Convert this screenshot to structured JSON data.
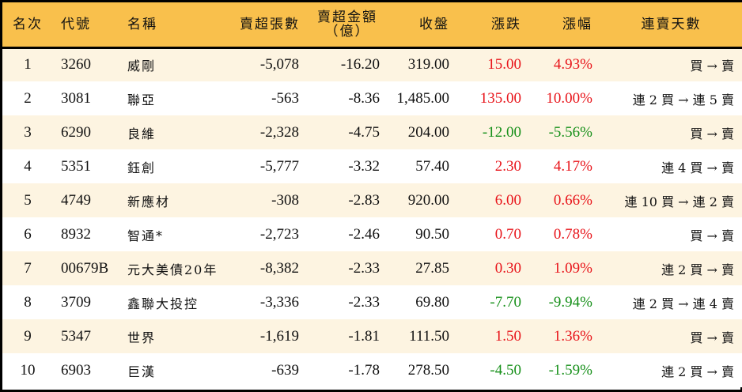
{
  "colors": {
    "header_bg": "#F9C04C",
    "row_odd_bg": "#FDF4E1",
    "row_even_bg": "#FFFFFF",
    "up": "#E8141A",
    "down": "#17901A",
    "border": "#000000"
  },
  "table": {
    "headers": {
      "rank": "名次",
      "code": "代號",
      "name": "名稱",
      "net_sell_lots": "賣超張數",
      "net_sell_amount_line1": "賣超金額",
      "net_sell_amount_line2": "（億）",
      "close": "收盤",
      "change": "漲跌",
      "change_pct": "漲幅",
      "streak": "連賣天數"
    },
    "rows": [
      {
        "rank": "1",
        "code": "3260",
        "name": "威剛",
        "lots": "-5,078",
        "amount": "-16.20",
        "close": "319.00",
        "change": "15.00",
        "pct": "4.93%",
        "dir": "up",
        "streak": "買 → 賣"
      },
      {
        "rank": "2",
        "code": "3081",
        "name": "聯亞",
        "lots": "-563",
        "amount": "-8.36",
        "close": "1,485.00",
        "change": "135.00",
        "pct": "10.00%",
        "dir": "up",
        "streak": "連 2 買 → 連 5 賣"
      },
      {
        "rank": "3",
        "code": "6290",
        "name": "良維",
        "lots": "-2,328",
        "amount": "-4.75",
        "close": "204.00",
        "change": "-12.00",
        "pct": "-5.56%",
        "dir": "down",
        "streak": "買 → 賣"
      },
      {
        "rank": "4",
        "code": "5351",
        "name": "鈺創",
        "lots": "-5,777",
        "amount": "-3.32",
        "close": "57.40",
        "change": "2.30",
        "pct": "4.17%",
        "dir": "up",
        "streak": "連 4 買 → 賣"
      },
      {
        "rank": "5",
        "code": "4749",
        "name": "新應材",
        "lots": "-308",
        "amount": "-2.83",
        "close": "920.00",
        "change": "6.00",
        "pct": "0.66%",
        "dir": "up",
        "streak": "連 10 買 → 連 2 賣"
      },
      {
        "rank": "6",
        "code": "8932",
        "name": "智通*",
        "lots": "-2,723",
        "amount": "-2.46",
        "close": "90.50",
        "change": "0.70",
        "pct": "0.78%",
        "dir": "up",
        "streak": "買 → 賣"
      },
      {
        "rank": "7",
        "code": "00679B",
        "name": "元大美債20年",
        "lots": "-8,382",
        "amount": "-2.33",
        "close": "27.85",
        "change": "0.30",
        "pct": "1.09%",
        "dir": "up",
        "streak": "連 2 買 → 賣"
      },
      {
        "rank": "8",
        "code": "3709",
        "name": "鑫聯大投控",
        "lots": "-3,336",
        "amount": "-2.33",
        "close": "69.80",
        "change": "-7.70",
        "pct": "-9.94%",
        "dir": "down",
        "streak": "連 2 買 → 連 4 賣"
      },
      {
        "rank": "9",
        "code": "5347",
        "name": "世界",
        "lots": "-1,619",
        "amount": "-1.81",
        "close": "111.50",
        "change": "1.50",
        "pct": "1.36%",
        "dir": "up",
        "streak": "買 → 賣"
      },
      {
        "rank": "10",
        "code": "6903",
        "name": "巨漢",
        "lots": "-639",
        "amount": "-1.78",
        "close": "278.50",
        "change": "-4.50",
        "pct": "-1.59%",
        "dir": "down",
        "streak": "連 2 買 → 賣"
      }
    ]
  }
}
